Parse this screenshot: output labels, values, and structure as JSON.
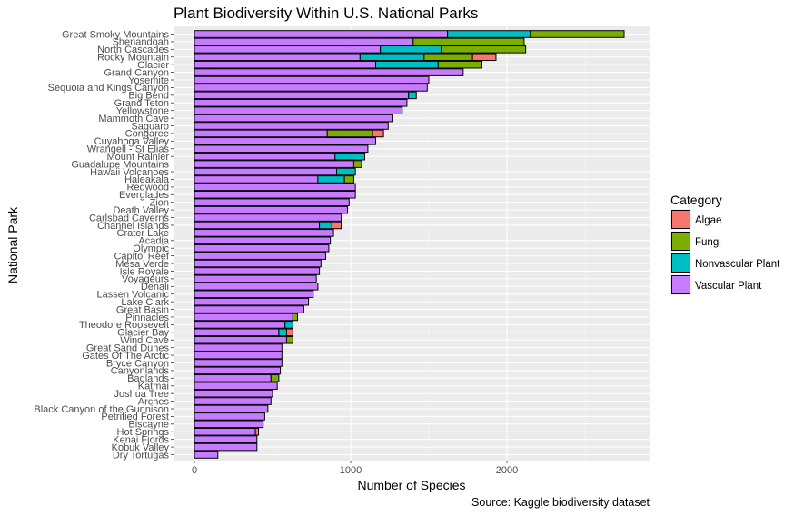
{
  "chart_data": {
    "type": "bar",
    "orientation": "horizontal",
    "stacked": true,
    "title": "Plant Biodiversity Within U.S. National Parks",
    "xlabel": "Number of Species",
    "ylabel": "National Park",
    "caption": "Source: Kaggle biodiversity dataset",
    "xlim": [
      0,
      2860
    ],
    "xticks": [
      0,
      1000,
      2000
    ],
    "grid": true,
    "legend": {
      "title": "Category",
      "position": "right",
      "entries": [
        "Algae",
        "Fungi",
        "Nonvascular Plant",
        "Vascular Plant"
      ]
    },
    "colors": {
      "Algae": "#F8766D",
      "Fungi": "#7CAE00",
      "Nonvascular Plant": "#00BFC4",
      "Vascular Plant": "#C77CFF"
    },
    "categories": [
      "Great Smoky Mountains",
      "Shenandoah",
      "North Cascades",
      "Rocky Mountain",
      "Glacier",
      "Grand Canyon",
      "Yosemite",
      "Sequoia and Kings Canyon",
      "Big Bend",
      "Grand Teton",
      "Yellowstone",
      "Mammoth Cave",
      "Saguaro",
      "Congaree",
      "Cuyahoga Valley",
      "Wrangell - St Elias",
      "Mount Rainier",
      "Guadalupe Mountains",
      "Hawaii Volcanoes",
      "Haleakala",
      "Redwood",
      "Everglades",
      "Zion",
      "Death Valley",
      "Carlsbad Caverns",
      "Channel Islands",
      "Crater Lake",
      "Acadia",
      "Olympic",
      "Capitol Reef",
      "Mesa Verde",
      "Isle Royale",
      "Voyageurs",
      "Denali",
      "Lassen Volcanic",
      "Lake Clark",
      "Great Basin",
      "Pinnacles",
      "Theodore Roosevelt",
      "Glacier Bay",
      "Wind Cave",
      "Great Sand Dunes",
      "Gates Of The Arctic",
      "Bryce Canyon",
      "Canyonlands",
      "Badlands",
      "Katmai",
      "Joshua Tree",
      "Arches",
      "Black Canyon of the Gunnison",
      "Petrified Forest",
      "Biscayne",
      "Hot Springs",
      "Kenai Fjords",
      "Kobuk Valley",
      "Dry Tortugas"
    ],
    "series": [
      {
        "name": "Vascular Plant",
        "values": [
          1620,
          1400,
          1190,
          1060,
          1160,
          1720,
          1500,
          1490,
          1370,
          1360,
          1330,
          1270,
          1240,
          850,
          1160,
          1110,
          900,
          1020,
          910,
          790,
          1030,
          1030,
          990,
          980,
          940,
          800,
          890,
          870,
          860,
          840,
          810,
          800,
          780,
          790,
          760,
          730,
          700,
          630,
          580,
          540,
          590,
          560,
          560,
          560,
          550,
          490,
          530,
          500,
          490,
          470,
          450,
          440,
          390,
          400,
          400,
          150
        ]
      },
      {
        "name": "Nonvascular Plant",
        "values": [
          530,
          0,
          390,
          410,
          400,
          0,
          0,
          0,
          50,
          0,
          0,
          0,
          0,
          0,
          0,
          0,
          190,
          0,
          120,
          170,
          0,
          0,
          0,
          0,
          0,
          80,
          0,
          0,
          0,
          0,
          0,
          0,
          0,
          0,
          0,
          0,
          0,
          0,
          50,
          50,
          0,
          0,
          0,
          0,
          0,
          0,
          0,
          0,
          0,
          0,
          0,
          0,
          0,
          0,
          0,
          0
        ]
      },
      {
        "name": "Fungi",
        "values": [
          600,
          710,
          540,
          310,
          280,
          0,
          0,
          0,
          0,
          0,
          0,
          0,
          0,
          290,
          0,
          0,
          0,
          50,
          0,
          60,
          0,
          0,
          0,
          0,
          0,
          0,
          0,
          0,
          0,
          0,
          0,
          0,
          0,
          0,
          0,
          0,
          0,
          30,
          0,
          0,
          40,
          0,
          0,
          0,
          0,
          50,
          0,
          0,
          0,
          0,
          0,
          0,
          0,
          0,
          0,
          0
        ]
      },
      {
        "name": "Algae",
        "values": [
          0,
          0,
          0,
          150,
          0,
          0,
          0,
          0,
          0,
          0,
          0,
          0,
          0,
          70,
          0,
          0,
          0,
          0,
          0,
          0,
          0,
          0,
          0,
          0,
          0,
          60,
          0,
          0,
          0,
          0,
          0,
          0,
          0,
          0,
          0,
          0,
          0,
          0,
          0,
          40,
          0,
          0,
          0,
          0,
          0,
          0,
          0,
          0,
          0,
          0,
          0,
          0,
          20,
          0,
          0,
          0
        ]
      }
    ]
  }
}
